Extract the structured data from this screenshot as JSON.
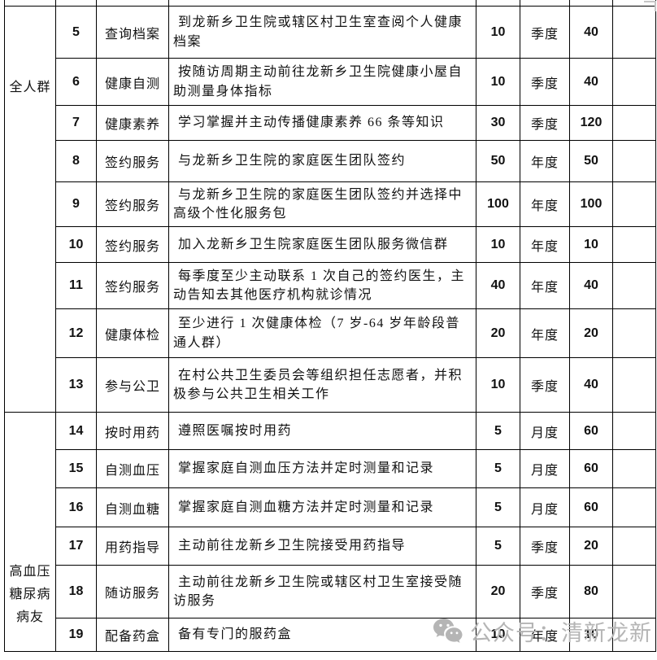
{
  "watermark": {
    "text": "公众号：清新龙新",
    "color": "#b5b5b5",
    "icon": "wechat-icon"
  },
  "table": {
    "groups": [
      {
        "label": "全人群",
        "rows": [
          {
            "no": "5",
            "item": "查询档案",
            "desc": "到龙新乡卫生院或辖区村卫生室查阅个人健康档案",
            "points": "10",
            "cycle": "季度",
            "total": "40"
          },
          {
            "no": "6",
            "item": "健康自测",
            "desc": "按随访周期主动前往龙新乡卫生院健康小屋自助测量身体指标",
            "points": "10",
            "cycle": "季度",
            "total": "40"
          },
          {
            "no": "7",
            "item": "健康素养",
            "desc": "学习掌握并主动传播健康素养 66 条等知识",
            "points": "30",
            "cycle": "季度",
            "total": "120"
          },
          {
            "no": "8",
            "item": "签约服务",
            "desc": "与龙新乡卫生院的家庭医生团队签约",
            "points": "50",
            "cycle": "年度",
            "total": "50"
          },
          {
            "no": "9",
            "item": "签约服务",
            "desc": "与龙新乡卫生院的家庭医生团队签约并选择中高级个性化服务包",
            "points": "100",
            "cycle": "年度",
            "total": "100"
          },
          {
            "no": "10",
            "item": "签约服务",
            "desc": "加入龙新乡卫生院家庭医生团队服务微信群",
            "points": "10",
            "cycle": "年度",
            "total": "10"
          },
          {
            "no": "11",
            "item": "签约服务",
            "desc": "每季度至少主动联系 1 次自己的签约医生，主动告知去其他医疗机构就诊情况",
            "points": "40",
            "cycle": "年度",
            "total": "40"
          },
          {
            "no": "12",
            "item": "健康体检",
            "desc": "至少进行 1 次健康体检（7 岁-64 岁年龄段普通人群）",
            "points": "20",
            "cycle": "年度",
            "total": "20"
          },
          {
            "no": "13",
            "item": "参与公卫",
            "desc": "在村公共卫生委员会等组织担任志愿者，并积极参与公共卫生相关工作",
            "points": "10",
            "cycle": "季度",
            "total": "40"
          }
        ]
      },
      {
        "label": "高血压糖尿病病友",
        "rows": [
          {
            "no": "14",
            "item": "按时用药",
            "desc": "遵照医嘱按时用药",
            "points": "5",
            "cycle": "月度",
            "total": "60"
          },
          {
            "no": "15",
            "item": "自测血压",
            "desc": "掌握家庭自测血压方法并定时测量和记录",
            "points": "5",
            "cycle": "月度",
            "total": "60"
          },
          {
            "no": "16",
            "item": "自测血糖",
            "desc": "掌握家庭自测血糖方法并定时测量和记录",
            "points": "5",
            "cycle": "月度",
            "total": "60"
          },
          {
            "no": "17",
            "item": "用药指导",
            "desc": "主动前往龙新乡卫生院接受用药指导",
            "points": "5",
            "cycle": "季度",
            "total": "20"
          },
          {
            "no": "18",
            "item": "随访服务",
            "desc": "主动前往龙新乡卫生院或辖区村卫生室接受随访服务",
            "points": "20",
            "cycle": "季度",
            "total": "80"
          },
          {
            "no": "19",
            "item": "配备药盒",
            "desc": "备有专门的服药盒",
            "points": "10",
            "cycle": "年度",
            "total": "10"
          }
        ]
      }
    ]
  }
}
